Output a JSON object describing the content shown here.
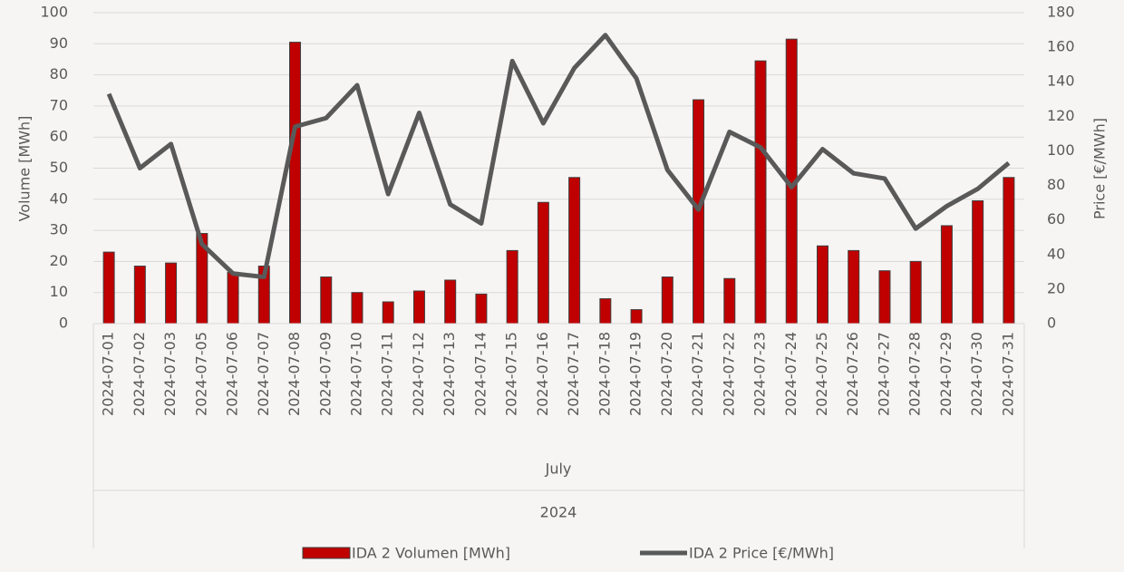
{
  "chart_data": {
    "type": "bar-line",
    "categories": [
      "2024-07-01",
      "2024-07-02",
      "2024-07-03",
      "2024-07-05",
      "2024-07-06",
      "2024-07-07",
      "2024-07-08",
      "2024-07-09",
      "2024-07-10",
      "2024-07-11",
      "2024-07-12",
      "2024-07-13",
      "2024-07-14",
      "2024-07-15",
      "2024-07-16",
      "2024-07-17",
      "2024-07-18",
      "2024-07-19",
      "2024-07-20",
      "2024-07-21",
      "2024-07-22",
      "2024-07-23",
      "2024-07-24",
      "2024-07-25",
      "2024-07-26",
      "2024-07-27",
      "2024-07-28",
      "2024-07-29",
      "2024-07-30",
      "2024-07-31"
    ],
    "category_groups": {
      "month": "July",
      "year": "2024"
    },
    "series": [
      {
        "name": "IDA 2 Volumen [MWh]",
        "type": "bar",
        "color": "#c00000",
        "values": [
          23,
          18.5,
          19.5,
          29,
          16.5,
          18.5,
          90.5,
          15,
          10,
          7,
          10.5,
          14,
          9.5,
          23.5,
          39,
          47,
          8,
          4.5,
          15,
          72,
          14.5,
          84.5,
          91.5,
          25,
          23.5,
          17,
          20,
          31.5,
          39.5,
          47
        ]
      },
      {
        "name": "IDA 2 Price [€/MWh]",
        "type": "line",
        "axis": "y2",
        "color": "#595959",
        "values": [
          133,
          90,
          104,
          46,
          29,
          27,
          114,
          119,
          138,
          75,
          122,
          69,
          58,
          152,
          116,
          148,
          167,
          142,
          89,
          66,
          111,
          102,
          79,
          101,
          87,
          84,
          55,
          68,
          78,
          93
        ]
      }
    ],
    "ylabel": "Volume [MWh]",
    "y2label": "Price [€/MWh]",
    "ylim": [
      0,
      100
    ],
    "yticks": [
      0,
      10,
      20,
      30,
      40,
      50,
      60,
      70,
      80,
      90,
      100
    ],
    "y2lim": [
      0,
      180
    ],
    "y2ticks": [
      0,
      20,
      40,
      60,
      80,
      100,
      120,
      140,
      160,
      180
    ],
    "grid": true,
    "legend": "bottom"
  }
}
